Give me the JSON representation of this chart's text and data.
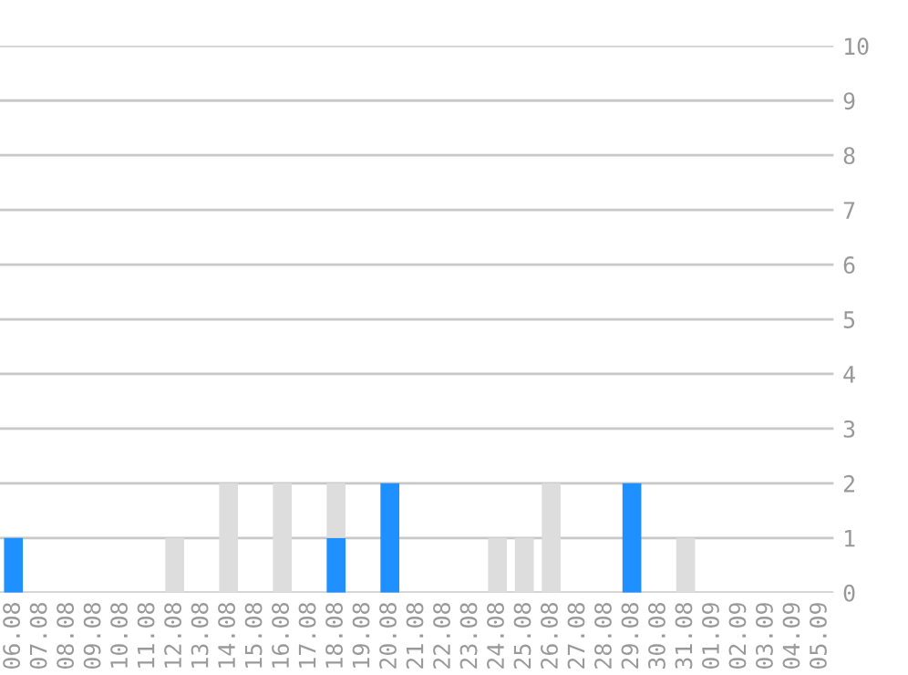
{
  "chart_data": {
    "type": "bar",
    "stacked": true,
    "categories": [
      "06.08",
      "07.08",
      "08.08",
      "09.08",
      "10.08",
      "11.08",
      "12.08",
      "13.08",
      "14.08",
      "15.08",
      "16.08",
      "17.08",
      "18.08",
      "19.08",
      "20.08",
      "21.08",
      "22.08",
      "23.08",
      "24.08",
      "25.08",
      "26.08",
      "27.08",
      "28.08",
      "29.08",
      "30.08",
      "31.08",
      "01.09",
      "02.09",
      "03.09",
      "04.09",
      "05.09"
    ],
    "series": [
      {
        "color": "#1e90ff",
        "values": [
          1,
          0,
          0,
          0,
          0,
          0,
          0,
          0,
          0,
          0,
          0,
          0,
          1,
          0,
          2,
          0,
          0,
          0,
          0,
          0,
          0,
          0,
          0,
          2,
          0,
          0,
          0,
          0,
          0,
          0,
          0
        ]
      },
      {
        "color": "#dddddd",
        "values": [
          0,
          0,
          0,
          0,
          0,
          0,
          1,
          0,
          2,
          0,
          2,
          0,
          1,
          0,
          0,
          0,
          0,
          0,
          1,
          1,
          2,
          0,
          0,
          0,
          0,
          1,
          0,
          0,
          0,
          0,
          0
        ]
      }
    ],
    "ylim": [
      0,
      10
    ],
    "yticks": [
      0,
      1,
      2,
      3,
      4,
      5,
      6,
      7,
      8,
      9,
      10
    ],
    "grid": "y"
  }
}
